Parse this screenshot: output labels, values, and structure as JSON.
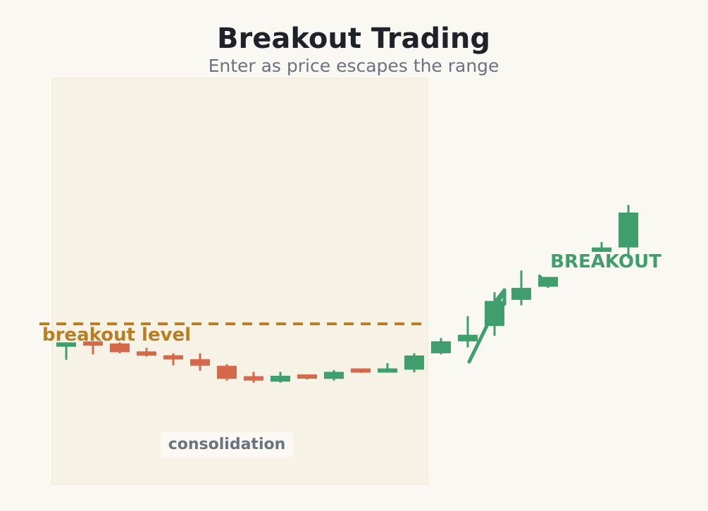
{
  "chart_data": {
    "type": "candlestick",
    "title": "Breakout Trading",
    "subtitle": "Enter as price escapes the range",
    "breakout_level_label": "breakout level",
    "breakout_level": 7.9,
    "consolidation_label": "consolidation",
    "consolidation_range": [
      0,
      13
    ],
    "breakout_label": "BREAKOUT",
    "candles": [
      {
        "i": 0,
        "open": 6.85,
        "high": 7.0,
        "low": 6.25,
        "close": 7.05
      },
      {
        "i": 1,
        "open": 7.05,
        "high": 7.1,
        "low": 6.5,
        "close": 6.95
      },
      {
        "i": 2,
        "open": 7.0,
        "high": 7.05,
        "low": 6.55,
        "close": 6.6
      },
      {
        "i": 3,
        "open": 6.6,
        "high": 6.8,
        "low": 6.4,
        "close": 6.48
      },
      {
        "i": 4,
        "open": 6.45,
        "high": 6.55,
        "low": 6.0,
        "close": 6.28
      },
      {
        "i": 5,
        "open": 6.28,
        "high": 6.55,
        "low": 5.75,
        "close": 5.98
      },
      {
        "i": 6,
        "open": 5.98,
        "high": 6.05,
        "low": 5.3,
        "close": 5.38
      },
      {
        "i": 7,
        "open": 5.5,
        "high": 5.7,
        "low": 5.2,
        "close": 5.3
      },
      {
        "i": 8,
        "open": 5.25,
        "high": 5.7,
        "low": 5.2,
        "close": 5.52
      },
      {
        "i": 9,
        "open": 5.55,
        "high": 5.55,
        "low": 5.35,
        "close": 5.42
      },
      {
        "i": 10,
        "open": 5.38,
        "high": 5.78,
        "low": 5.3,
        "close": 5.7
      },
      {
        "i": 11,
        "open": 5.8,
        "high": 5.8,
        "low": 5.65,
        "close": 5.72
      },
      {
        "i": 12,
        "open": 5.72,
        "high": 6.1,
        "low": 5.72,
        "close": 5.8
      },
      {
        "i": 13,
        "open": 5.8,
        "high": 6.55,
        "low": 5.68,
        "close": 6.45
      },
      {
        "i": 14,
        "open": 6.55,
        "high": 7.25,
        "low": 6.5,
        "close": 7.1
      },
      {
        "i": 15,
        "open": 7.1,
        "high": 8.25,
        "low": 6.82,
        "close": 7.4
      },
      {
        "i": 16,
        "open": 7.8,
        "high": 9.35,
        "low": 7.35,
        "close": 8.95
      },
      {
        "i": 17,
        "open": 9.0,
        "high": 10.35,
        "low": 8.75,
        "close": 9.55
      },
      {
        "i": 18,
        "open": 9.6,
        "high": 9.95,
        "low": 9.55,
        "close": 10.05
      },
      {
        "i": 19,
        "open": 10.05,
        "high": 10.05,
        "low": 10.05,
        "close": 10.05
      },
      {
        "i": 20,
        "open": 11.2,
        "high": 11.65,
        "low": 11.2,
        "close": 11.4
      },
      {
        "i": 21,
        "open": 11.4,
        "high": 13.35,
        "low": 10.9,
        "close": 13.0
      }
    ],
    "hidden_candles": [
      19
    ],
    "colors": {
      "up": "#3f9e6c",
      "down": "#d4694b",
      "level": "#b97d22",
      "zone": "#f7f2e6",
      "background": "#faf8f3",
      "title": "#1f2329",
      "subtitle": "#6b7280",
      "consolidation_text": "#6b7280"
    },
    "xlim": [
      -0.5,
      21.5
    ],
    "ylim": [
      4.5,
      15.5
    ],
    "grid": false,
    "legend": "none"
  }
}
